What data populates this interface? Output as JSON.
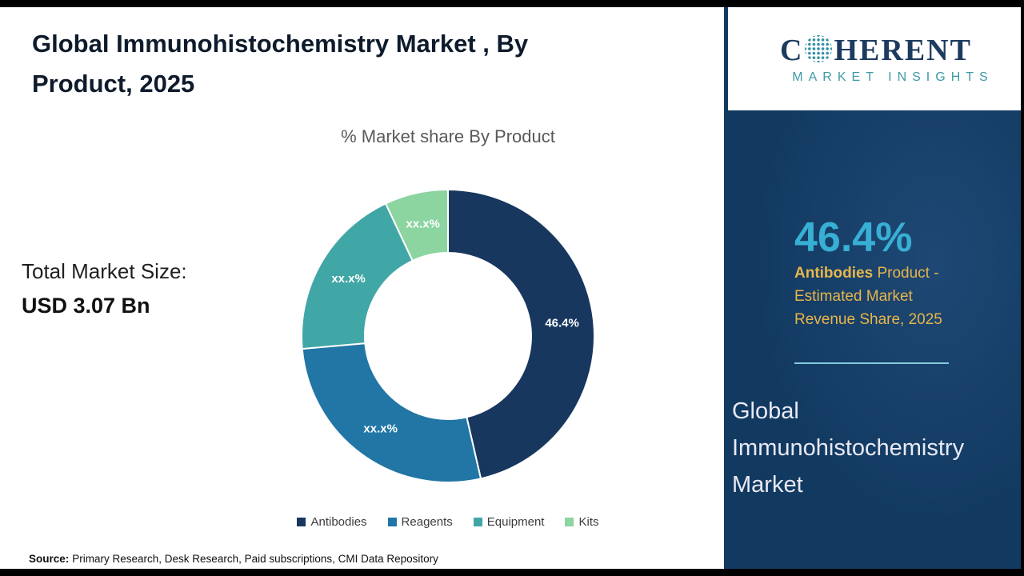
{
  "header": {
    "title": "Global Immunohistochemistry Market , By Product, 2025"
  },
  "main": {
    "market_size_label": "Total Market Size:",
    "market_size_value": "USD 3.07 Bn",
    "source_label": "Source:",
    "source_text": "Primary Research, Desk Research, Paid subscriptions, CMI Data Repository"
  },
  "chart_data": {
    "type": "pie",
    "subtype": "donut",
    "title": "% Market share By Product",
    "categories": [
      "Antibodies",
      "Reagents",
      "Equipment",
      "Kits"
    ],
    "values": [
      46.4,
      27.2,
      19.4,
      7.0
    ],
    "value_labels": [
      "46.4%",
      "xx.x%",
      "xx.x%",
      "xx.x%"
    ],
    "colors": [
      "#17375E",
      "#2176A5",
      "#41A6A6",
      "#8CD4A0"
    ],
    "legend_position": "bottom",
    "start_angle_deg": 0
  },
  "sidebar": {
    "logo_text_c": "C",
    "logo_text_rest": "HERENT",
    "logo_subtitle": "MARKET INSIGHTS",
    "big_percent": "46.4%",
    "highlight_bold": "Antibodies",
    "highlight_rest": " Product - Estimated Market Revenue Share, 2025",
    "title": "Global Immunohistochemistry Market",
    "colors": {
      "background": "#123A61",
      "percent": "#38AFD4",
      "highlight": "#E7B64B"
    }
  }
}
